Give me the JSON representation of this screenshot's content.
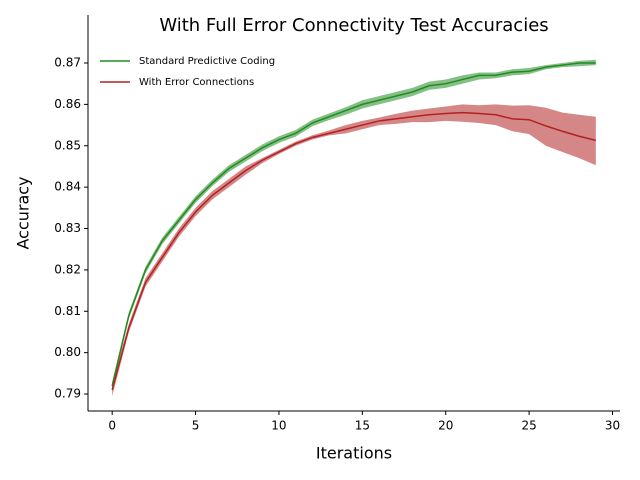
{
  "chart_data": {
    "type": "line",
    "title": "With Full Error Connectivity Test Accuracies",
    "x_label": "Iterations",
    "y_label": "Accuracy",
    "x": [
      0,
      1,
      2,
      3,
      4,
      5,
      6,
      7,
      8,
      9,
      10,
      11,
      12,
      13,
      14,
      15,
      16,
      17,
      18,
      19,
      20,
      21,
      22,
      23,
      24,
      25,
      26,
      27,
      28,
      29
    ],
    "xlim": [
      -1.45,
      30.45
    ],
    "xticks": [
      0,
      5,
      10,
      15,
      20,
      25,
      30
    ],
    "ylim": [
      0.7859,
      0.8816
    ],
    "yticks": [
      0.79,
      {
        "value": 0.8,
        "label": "0.80"
      },
      0.81,
      0.82,
      0.83,
      0.84,
      0.85,
      0.86,
      0.87
    ],
    "legend": "upper left",
    "series": [
      {
        "name": "Standard Predictive Coding",
        "color": "#228b22",
        "values": [
          0.792,
          0.809,
          0.82,
          0.827,
          0.832,
          0.837,
          0.841,
          0.8445,
          0.847,
          0.8495,
          0.8515,
          0.853,
          0.8555,
          0.857,
          0.8585,
          0.86,
          0.861,
          0.862,
          0.863,
          0.8645,
          0.865,
          0.866,
          0.867,
          0.867,
          0.8678,
          0.868,
          0.869,
          0.8695,
          0.87,
          0.87
        ],
        "lower": [
          0.7912,
          0.8082,
          0.8192,
          0.8262,
          0.8312,
          0.8362,
          0.8402,
          0.8437,
          0.8462,
          0.8487,
          0.8507,
          0.8522,
          0.8547,
          0.8562,
          0.8575,
          0.859,
          0.86,
          0.861,
          0.862,
          0.8635,
          0.864,
          0.865,
          0.866,
          0.8663,
          0.867,
          0.8673,
          0.8685,
          0.869,
          0.8692,
          0.8695
        ],
        "upper": [
          0.7928,
          0.8098,
          0.8208,
          0.8278,
          0.8328,
          0.8378,
          0.8418,
          0.8453,
          0.8478,
          0.8503,
          0.8523,
          0.8538,
          0.8563,
          0.8578,
          0.8593,
          0.861,
          0.862,
          0.863,
          0.864,
          0.8655,
          0.866,
          0.867,
          0.8677,
          0.8677,
          0.8685,
          0.8688,
          0.8695,
          0.87,
          0.8705,
          0.8708
        ]
      },
      {
        "name": "With Error Connections",
        "color": "#b22222",
        "values": [
          0.791,
          0.806,
          0.817,
          0.823,
          0.829,
          0.834,
          0.838,
          0.841,
          0.844,
          0.8465,
          0.8485,
          0.8505,
          0.852,
          0.853,
          0.854,
          0.855,
          0.856,
          0.8565,
          0.857,
          0.8575,
          0.8578,
          0.858,
          0.8578,
          0.8575,
          0.8565,
          0.8563,
          0.8548,
          0.8535,
          0.8523,
          0.8513
        ],
        "lower": [
          0.7895,
          0.805,
          0.816,
          0.822,
          0.828,
          0.833,
          0.837,
          0.84,
          0.843,
          0.8458,
          0.848,
          0.85,
          0.8515,
          0.8525,
          0.853,
          0.854,
          0.855,
          0.8553,
          0.8557,
          0.8557,
          0.856,
          0.8558,
          0.8555,
          0.855,
          0.8535,
          0.8528,
          0.85,
          0.8485,
          0.847,
          0.8453
        ],
        "upper": [
          0.7925,
          0.807,
          0.818,
          0.824,
          0.83,
          0.835,
          0.839,
          0.842,
          0.845,
          0.847,
          0.849,
          0.851,
          0.8525,
          0.8537,
          0.855,
          0.856,
          0.8568,
          0.8577,
          0.8585,
          0.859,
          0.8595,
          0.86,
          0.8598,
          0.86,
          0.8597,
          0.8598,
          0.8592,
          0.858,
          0.8575,
          0.857
        ]
      }
    ]
  }
}
